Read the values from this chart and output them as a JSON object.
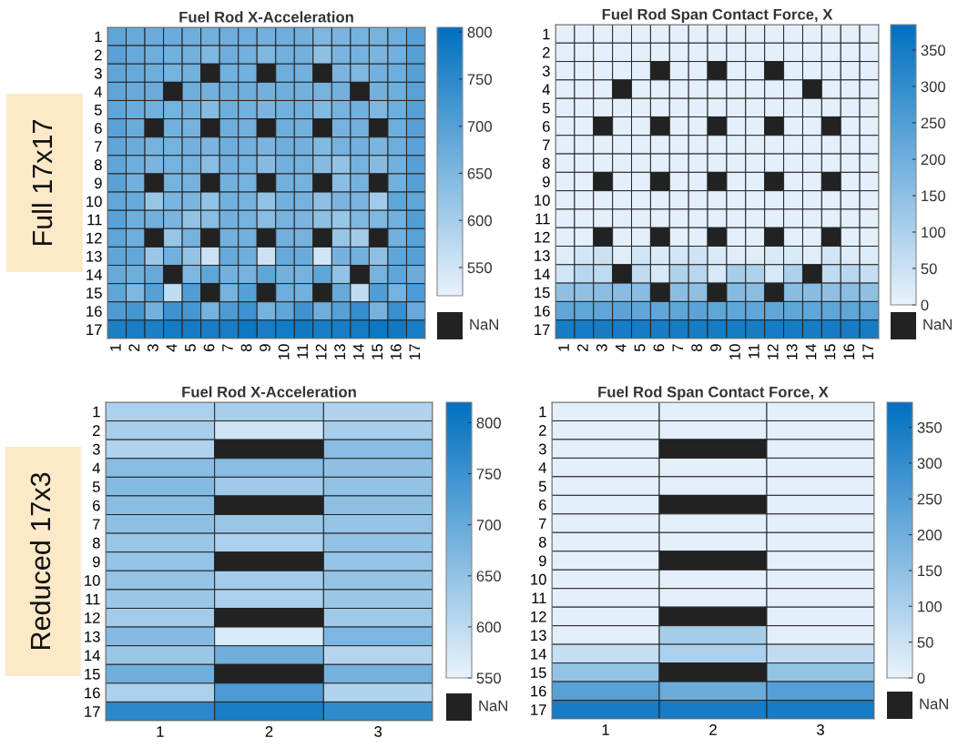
{
  "chart_data": [
    {
      "type": "heatmap",
      "title": "Fuel Rod X-Acceleration",
      "ylabel": "Full 17x17",
      "annotations": [
        "NaN"
      ],
      "categories": [
        "1",
        "2",
        "3",
        "4",
        "5",
        "6",
        "7",
        "8",
        "9",
        "10",
        "11",
        "12",
        "13",
        "14",
        "15",
        "16",
        "17"
      ],
      "y_categories": [
        "1",
        "2",
        "3",
        "4",
        "5",
        "6",
        "7",
        "8",
        "9",
        "10",
        "11",
        "12",
        "13",
        "14",
        "15",
        "16",
        "17"
      ],
      "colors": [
        "#e8f2fb",
        "#0070c0"
      ],
      "clim": [
        520,
        805
      ],
      "cticks": [
        550,
        600,
        650,
        700,
        750,
        800
      ],
      "cells": [
        [
          690,
          680,
          675,
          675,
          670,
          665,
          670,
          670,
          665,
          670,
          665,
          650,
          655,
          660,
          660,
          670,
          700
        ],
        [
          695,
          680,
          670,
          665,
          665,
          650,
          670,
          665,
          650,
          665,
          665,
          630,
          655,
          660,
          655,
          665,
          700
        ],
        [
          690,
          680,
          670,
          660,
          665,
          null,
          665,
          665,
          null,
          670,
          665,
          null,
          655,
          650,
          665,
          670,
          700
        ],
        [
          690,
          680,
          675,
          null,
          670,
          665,
          670,
          670,
          665,
          670,
          665,
          660,
          665,
          null,
          665,
          670,
          695
        ],
        [
          690,
          675,
          665,
          660,
          665,
          640,
          670,
          665,
          655,
          665,
          665,
          645,
          660,
          665,
          650,
          670,
          700
        ],
        [
          695,
          675,
          null,
          665,
          660,
          null,
          670,
          665,
          null,
          670,
          665,
          null,
          660,
          665,
          null,
          670,
          700
        ],
        [
          690,
          675,
          660,
          660,
          665,
          655,
          670,
          665,
          655,
          670,
          665,
          645,
          660,
          665,
          655,
          670,
          695
        ],
        [
          690,
          670,
          655,
          660,
          660,
          635,
          665,
          660,
          640,
          665,
          660,
          640,
          625,
          660,
          640,
          665,
          700
        ],
        [
          695,
          665,
          null,
          660,
          660,
          null,
          665,
          660,
          null,
          665,
          660,
          null,
          635,
          660,
          null,
          665,
          700
        ],
        [
          685,
          680,
          620,
          655,
          655,
          625,
          665,
          660,
          625,
          665,
          660,
          630,
          655,
          655,
          605,
          690,
          690
        ],
        [
          695,
          670,
          665,
          655,
          625,
          635,
          665,
          660,
          635,
          660,
          655,
          630,
          620,
          650,
          650,
          665,
          705
        ],
        [
          690,
          670,
          null,
          620,
          660,
          null,
          665,
          665,
          null,
          665,
          660,
          null,
          620,
          605,
          null,
          665,
          695
        ],
        [
          690,
          685,
          615,
          665,
          625,
          555,
          680,
          670,
          555,
          680,
          675,
          550,
          660,
          665,
          630,
          690,
          700
        ],
        [
          680,
          670,
          680,
          null,
          650,
          690,
          665,
          660,
          690,
          665,
          660,
          690,
          625,
          null,
          660,
          690,
          675
        ],
        [
          690,
          650,
          700,
          570,
          705,
          null,
          660,
          700,
          null,
          670,
          665,
          null,
          680,
          570,
          705,
          660,
          710
        ],
        [
          710,
          720,
          665,
          730,
          720,
          660,
          710,
          730,
          660,
          690,
          730,
          670,
          700,
          740,
          660,
          735,
          680
        ],
        [
          770,
          775,
          770,
          780,
          780,
          775,
          775,
          790,
          775,
          780,
          785,
          775,
          775,
          780,
          790,
          785,
          775
        ]
      ]
    },
    {
      "type": "heatmap",
      "title": "Fuel Rod Span Contact Force, X",
      "annotations": [
        "NaN"
      ],
      "categories": [
        "1",
        "2",
        "3",
        "4",
        "5",
        "6",
        "7",
        "8",
        "9",
        "10",
        "11",
        "12",
        "13",
        "14",
        "15",
        "16",
        "17"
      ],
      "y_categories": [
        "1",
        "2",
        "3",
        "4",
        "5",
        "6",
        "7",
        "8",
        "9",
        "10",
        "11",
        "12",
        "13",
        "14",
        "15",
        "16",
        "17"
      ],
      "colors": [
        "#e8f2fb",
        "#0070c0"
      ],
      "clim": [
        0,
        385
      ],
      "cticks": [
        0,
        50,
        100,
        150,
        200,
        250,
        300,
        350
      ],
      "cells": [
        [
          10,
          10,
          10,
          10,
          10,
          10,
          10,
          10,
          10,
          10,
          10,
          10,
          10,
          10,
          10,
          10,
          10
        ],
        [
          10,
          10,
          10,
          10,
          10,
          10,
          10,
          10,
          10,
          10,
          10,
          10,
          10,
          10,
          10,
          10,
          10
        ],
        [
          10,
          10,
          10,
          10,
          10,
          null,
          10,
          10,
          null,
          10,
          10,
          null,
          10,
          10,
          10,
          10,
          10
        ],
        [
          10,
          10,
          10,
          null,
          10,
          10,
          10,
          10,
          10,
          10,
          10,
          10,
          10,
          null,
          10,
          10,
          10
        ],
        [
          10,
          10,
          10,
          10,
          10,
          10,
          10,
          10,
          10,
          10,
          10,
          10,
          10,
          10,
          10,
          10,
          10
        ],
        [
          10,
          10,
          null,
          10,
          10,
          null,
          10,
          10,
          null,
          10,
          10,
          null,
          10,
          10,
          null,
          10,
          10
        ],
        [
          10,
          10,
          10,
          10,
          10,
          10,
          10,
          10,
          10,
          10,
          10,
          10,
          10,
          10,
          10,
          10,
          10
        ],
        [
          10,
          10,
          10,
          10,
          10,
          10,
          10,
          10,
          10,
          10,
          10,
          10,
          10,
          10,
          10,
          10,
          10
        ],
        [
          10,
          10,
          null,
          10,
          10,
          null,
          10,
          10,
          null,
          10,
          10,
          null,
          10,
          10,
          null,
          10,
          10
        ],
        [
          10,
          10,
          10,
          10,
          10,
          10,
          10,
          10,
          10,
          10,
          10,
          10,
          10,
          10,
          10,
          10,
          10
        ],
        [
          10,
          10,
          10,
          10,
          10,
          10,
          10,
          10,
          10,
          10,
          10,
          10,
          10,
          10,
          10,
          10,
          10
        ],
        [
          10,
          10,
          null,
          10,
          10,
          null,
          10,
          10,
          null,
          10,
          10,
          null,
          10,
          10,
          null,
          10,
          10
        ],
        [
          15,
          35,
          50,
          15,
          40,
          25,
          35,
          45,
          25,
          15,
          15,
          25,
          25,
          15,
          40,
          20,
          20
        ],
        [
          40,
          80,
          70,
          null,
          65,
          30,
          95,
          80,
          30,
          110,
          95,
          30,
          100,
          null,
          70,
          80,
          60
        ],
        [
          150,
          150,
          155,
          160,
          160,
          null,
          155,
          150,
          null,
          165,
          155,
          null,
          160,
          160,
          150,
          155,
          150
        ],
        [
          230,
          230,
          230,
          235,
          230,
          230,
          230,
          235,
          230,
          230,
          230,
          230,
          230,
          230,
          230,
          230,
          230
        ],
        [
          350,
          350,
          350,
          350,
          350,
          350,
          350,
          350,
          350,
          350,
          350,
          350,
          350,
          350,
          350,
          350,
          350
        ]
      ]
    },
    {
      "type": "heatmap",
      "title": "Fuel Rod X-Acceleration",
      "ylabel": "Reduced 17x3",
      "annotations": [
        "NaN"
      ],
      "categories": [
        "1",
        "2",
        "3"
      ],
      "y_categories": [
        "1",
        "2",
        "3",
        "4",
        "5",
        "6",
        "7",
        "8",
        "9",
        "10",
        "11",
        "12",
        "13",
        "14",
        "15",
        "16",
        "17"
      ],
      "colors": [
        "#e8f2fb",
        "#0070c0"
      ],
      "clim": [
        550,
        820
      ],
      "cticks": [
        550,
        600,
        650,
        700,
        750,
        800
      ],
      "cells": [
        [
          620,
          625,
          615
        ],
        [
          625,
          580,
          625
        ],
        [
          615,
          null,
          660
        ],
        [
          660,
          660,
          655
        ],
        [
          665,
          635,
          650
        ],
        [
          660,
          null,
          655
        ],
        [
          655,
          640,
          645
        ],
        [
          640,
          620,
          650
        ],
        [
          645,
          null,
          645
        ],
        [
          645,
          630,
          645
        ],
        [
          640,
          620,
          640
        ],
        [
          630,
          null,
          635
        ],
        [
          665,
          570,
          675
        ],
        [
          640,
          690,
          610
        ],
        [
          690,
          null,
          685
        ],
        [
          620,
          730,
          615
        ],
        [
          770,
          790,
          765
        ]
      ]
    },
    {
      "type": "heatmap",
      "title": "Fuel Rod Span Contact Force, X",
      "annotations": [
        "NaN"
      ],
      "categories": [
        "1",
        "2",
        "3"
      ],
      "y_categories": [
        "1",
        "2",
        "3",
        "4",
        "5",
        "6",
        "7",
        "8",
        "9",
        "10",
        "11",
        "12",
        "13",
        "14",
        "15",
        "16",
        "17"
      ],
      "colors": [
        "#e8f2fb",
        "#0070c0"
      ],
      "clim": [
        0,
        385
      ],
      "cticks": [
        0,
        50,
        100,
        150,
        200,
        250,
        300,
        350
      ],
      "cells": [
        [
          10,
          10,
          10
        ],
        [
          10,
          10,
          10
        ],
        [
          10,
          null,
          10
        ],
        [
          10,
          10,
          10
        ],
        [
          10,
          10,
          10
        ],
        [
          10,
          null,
          10
        ],
        [
          10,
          10,
          10
        ],
        [
          10,
          10,
          10
        ],
        [
          10,
          null,
          10
        ],
        [
          10,
          10,
          10
        ],
        [
          10,
          10,
          10
        ],
        [
          10,
          null,
          10
        ],
        [
          12,
          110,
          12
        ],
        [
          60,
          100,
          65
        ],
        [
          140,
          null,
          140
        ],
        [
          240,
          210,
          245
        ],
        [
          350,
          350,
          350
        ]
      ]
    }
  ]
}
